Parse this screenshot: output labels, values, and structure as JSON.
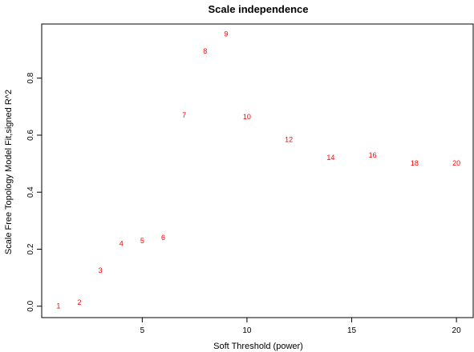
{
  "chart_data": {
    "type": "scatter",
    "title": "Scale independence",
    "xlabel": "Soft Threshold (power)",
    "ylabel": "Scale Free Topology Model Fit,signed R^2",
    "xlim": [
      0.2,
      20.8
    ],
    "ylim": [
      -0.04,
      0.99
    ],
    "x_ticks": [
      "5",
      "10",
      "15",
      "20"
    ],
    "y_ticks": [
      "0.0",
      "0.2",
      "0.4",
      "0.6",
      "0.8"
    ],
    "x_tick_values": [
      5,
      10,
      15,
      20
    ],
    "y_tick_values": [
      0.0,
      0.2,
      0.4,
      0.6,
      0.8
    ],
    "point_color": "#ff0000",
    "points": [
      {
        "x": 1,
        "y": 0.0,
        "label": "1"
      },
      {
        "x": 2,
        "y": 0.013,
        "label": "2"
      },
      {
        "x": 3,
        "y": 0.125,
        "label": "3"
      },
      {
        "x": 4,
        "y": 0.22,
        "label": "4"
      },
      {
        "x": 5,
        "y": 0.229,
        "label": "5"
      },
      {
        "x": 6,
        "y": 0.24,
        "label": "6"
      },
      {
        "x": 7,
        "y": 0.67,
        "label": "7"
      },
      {
        "x": 8,
        "y": 0.895,
        "label": "8"
      },
      {
        "x": 9,
        "y": 0.955,
        "label": "9"
      },
      {
        "x": 10,
        "y": 0.665,
        "label": "10"
      },
      {
        "x": 12,
        "y": 0.585,
        "label": "12"
      },
      {
        "x": 14,
        "y": 0.522,
        "label": "14"
      },
      {
        "x": 16,
        "y": 0.53,
        "label": "16"
      },
      {
        "x": 18,
        "y": 0.502,
        "label": "18"
      },
      {
        "x": 20,
        "y": 0.502,
        "label": "20"
      }
    ]
  }
}
